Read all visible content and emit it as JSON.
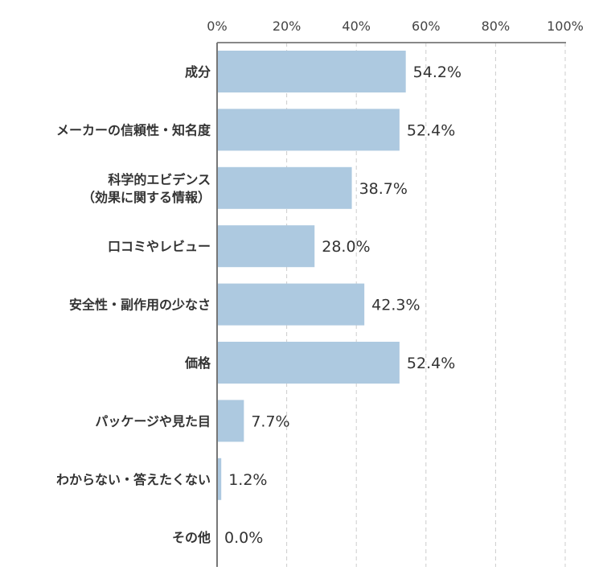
{
  "chart_data": {
    "type": "bar",
    "orientation": "horizontal",
    "categories": [
      [
        "成分"
      ],
      [
        "メーカーの信頼性・知名度"
      ],
      [
        "科学的エビデンス",
        "（効果に関する情報）"
      ],
      [
        "口コミやレビュー"
      ],
      [
        "安全性・副作用の少なさ"
      ],
      [
        "価格"
      ],
      [
        "パッケージや見た目"
      ],
      [
        "わからない・答えたくない"
      ],
      [
        "その他"
      ]
    ],
    "values": [
      54.2,
      52.4,
      38.7,
      28.0,
      42.3,
      52.4,
      7.7,
      1.2,
      0.0
    ],
    "value_labels": [
      "54.2%",
      "52.4%",
      "38.7%",
      "28.0%",
      "42.3%",
      "52.4%",
      "7.7%",
      "1.2%",
      "0.0%"
    ],
    "xlim": [
      0,
      100
    ],
    "x_ticks": [
      0,
      20,
      40,
      60,
      80,
      100
    ],
    "x_tick_labels": [
      "0%",
      "20%",
      "40%",
      "60%",
      "80%",
      "100%"
    ],
    "x_axis_position": "top",
    "grid": true,
    "bar_color": "#adc9e0",
    "title": "",
    "xlabel": "",
    "ylabel": ""
  }
}
